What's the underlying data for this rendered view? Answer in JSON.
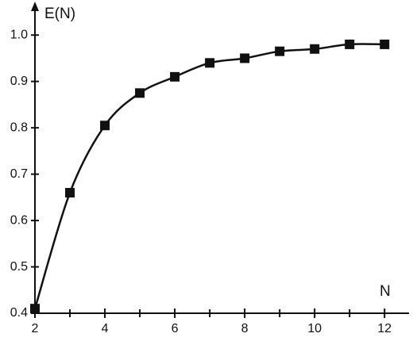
{
  "chart_data": {
    "type": "line",
    "ylabel": "E(N)",
    "xlabel": "N",
    "x": [
      2,
      3,
      4,
      5,
      6,
      7,
      8,
      9,
      10,
      11,
      12
    ],
    "series": [
      {
        "color": "#111111",
        "values": [
          0.41,
          0.66,
          0.805,
          0.875,
          0.91,
          0.94,
          0.95,
          0.965,
          0.97,
          0.98,
          0.98
        ]
      }
    ],
    "xlim": [
      2,
      12.7
    ],
    "ylim": [
      0.4,
      1.05
    ],
    "xticks": [
      2,
      4,
      6,
      8,
      10,
      12
    ],
    "minor_xticks": [
      3,
      5,
      7,
      9,
      11
    ],
    "yticks": [
      0.4,
      0.5,
      0.6,
      0.7,
      0.8,
      0.9,
      {
        "value": 1,
        "label": "1.0"
      }
    ],
    "marker": "square",
    "smooth": true
  }
}
